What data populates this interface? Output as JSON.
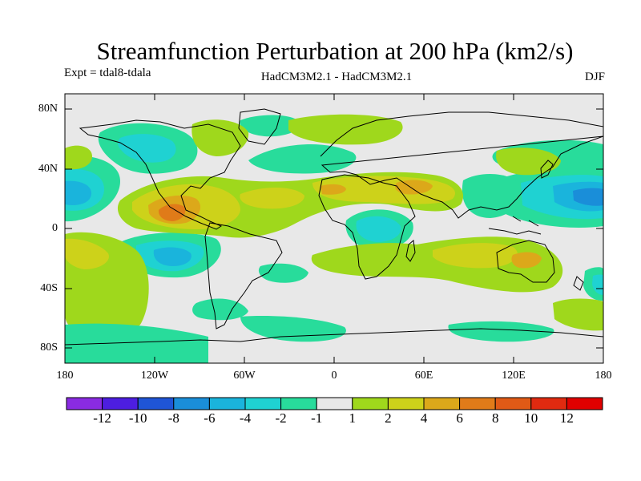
{
  "title": "Streamfunction Perturbation at 200 hPa (km2/s)",
  "experiment": "Expt = tdal8-tdala",
  "model_label": "HadCM3M2.1 - HadCM3M2.1",
  "season": "DJF",
  "lat_labels": [
    "80N",
    "40N",
    "0",
    "40S",
    "80S"
  ],
  "lon_labels": [
    "180",
    "120W",
    "60W",
    "0",
    "60E",
    "120E",
    "180"
  ],
  "colorbar": {
    "labels": [
      "-12",
      "-10",
      "-8",
      "-6",
      "-4",
      "-2",
      "-1",
      "1",
      "2",
      "4",
      "6",
      "8",
      "10",
      "12"
    ],
    "colors": [
      "#8a2be2",
      "#4d1ee0",
      "#1f55d6",
      "#1a8ed9",
      "#1ab4dc",
      "#1fd2d2",
      "#28dc9b",
      "#e8e8e8",
      "#9fd81c",
      "#cdd21a",
      "#dca81a",
      "#e07b19",
      "#e05a16",
      "#e02a10",
      "#e00000"
    ]
  },
  "map_colors": {
    "ocean_background": "#e8e8e8",
    "coastline": "#000000"
  }
}
